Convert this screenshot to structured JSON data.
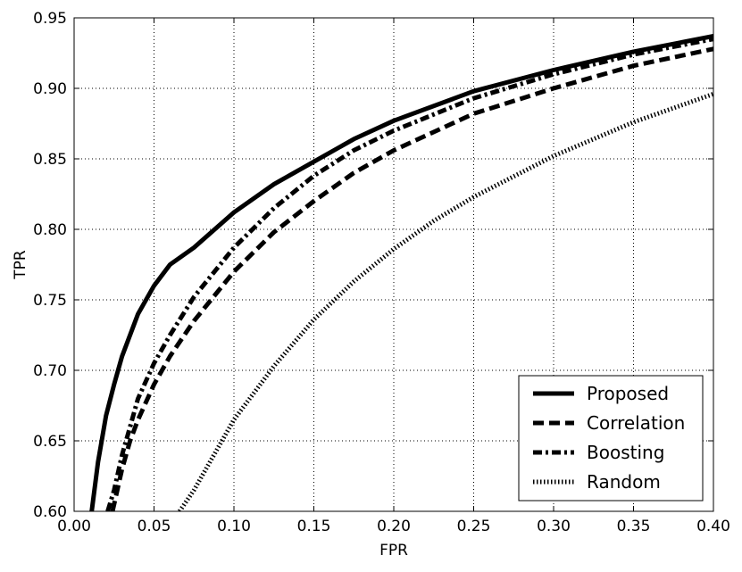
{
  "chart_data": {
    "type": "line",
    "title": "",
    "xlabel": "FPR",
    "ylabel": "TPR",
    "xlim": [
      0.0,
      0.4
    ],
    "ylim": [
      0.6,
      0.95
    ],
    "x_ticks": [
      "0.00",
      "0.05",
      "0.10",
      "0.15",
      "0.20",
      "0.25",
      "0.30",
      "0.35",
      "0.40"
    ],
    "y_ticks": [
      "0.60",
      "0.65",
      "0.70",
      "0.75",
      "0.80",
      "0.85",
      "0.90",
      "0.95"
    ],
    "grid": true,
    "legend_position": "bottom-right",
    "series": [
      {
        "name": "Proposed",
        "style": "solid",
        "color": "#000000",
        "x": [
          0.011,
          0.015,
          0.02,
          0.025,
          0.03,
          0.04,
          0.05,
          0.06,
          0.075,
          0.1,
          0.125,
          0.15,
          0.175,
          0.2,
          0.25,
          0.3,
          0.35,
          0.4
        ],
        "y": [
          0.6,
          0.635,
          0.668,
          0.69,
          0.71,
          0.74,
          0.76,
          0.775,
          0.787,
          0.812,
          0.832,
          0.848,
          0.864,
          0.877,
          0.898,
          0.913,
          0.926,
          0.937
        ]
      },
      {
        "name": "Correlation",
        "style": "dashed",
        "color": "#000000",
        "x": [
          0.024,
          0.03,
          0.035,
          0.04,
          0.05,
          0.06,
          0.075,
          0.1,
          0.125,
          0.15,
          0.175,
          0.2,
          0.25,
          0.3,
          0.35,
          0.4
        ],
        "y": [
          0.6,
          0.63,
          0.65,
          0.665,
          0.69,
          0.71,
          0.735,
          0.77,
          0.798,
          0.82,
          0.84,
          0.856,
          0.882,
          0.9,
          0.916,
          0.928
        ]
      },
      {
        "name": "Boosting",
        "style": "dashdot",
        "color": "#000000",
        "x": [
          0.021,
          0.025,
          0.03,
          0.035,
          0.04,
          0.05,
          0.06,
          0.075,
          0.1,
          0.125,
          0.15,
          0.175,
          0.2,
          0.25,
          0.3,
          0.35,
          0.4
        ],
        "y": [
          0.6,
          0.615,
          0.64,
          0.66,
          0.68,
          0.705,
          0.725,
          0.752,
          0.787,
          0.815,
          0.838,
          0.856,
          0.87,
          0.893,
          0.91,
          0.924,
          0.935
        ]
      },
      {
        "name": "Random",
        "style": "dotted",
        "color": "#000000",
        "x": [
          0.066,
          0.075,
          0.09,
          0.1,
          0.125,
          0.15,
          0.175,
          0.2,
          0.225,
          0.25,
          0.3,
          0.35,
          0.4
        ],
        "y": [
          0.6,
          0.615,
          0.645,
          0.665,
          0.703,
          0.736,
          0.763,
          0.786,
          0.806,
          0.823,
          0.852,
          0.876,
          0.896
        ]
      }
    ]
  }
}
